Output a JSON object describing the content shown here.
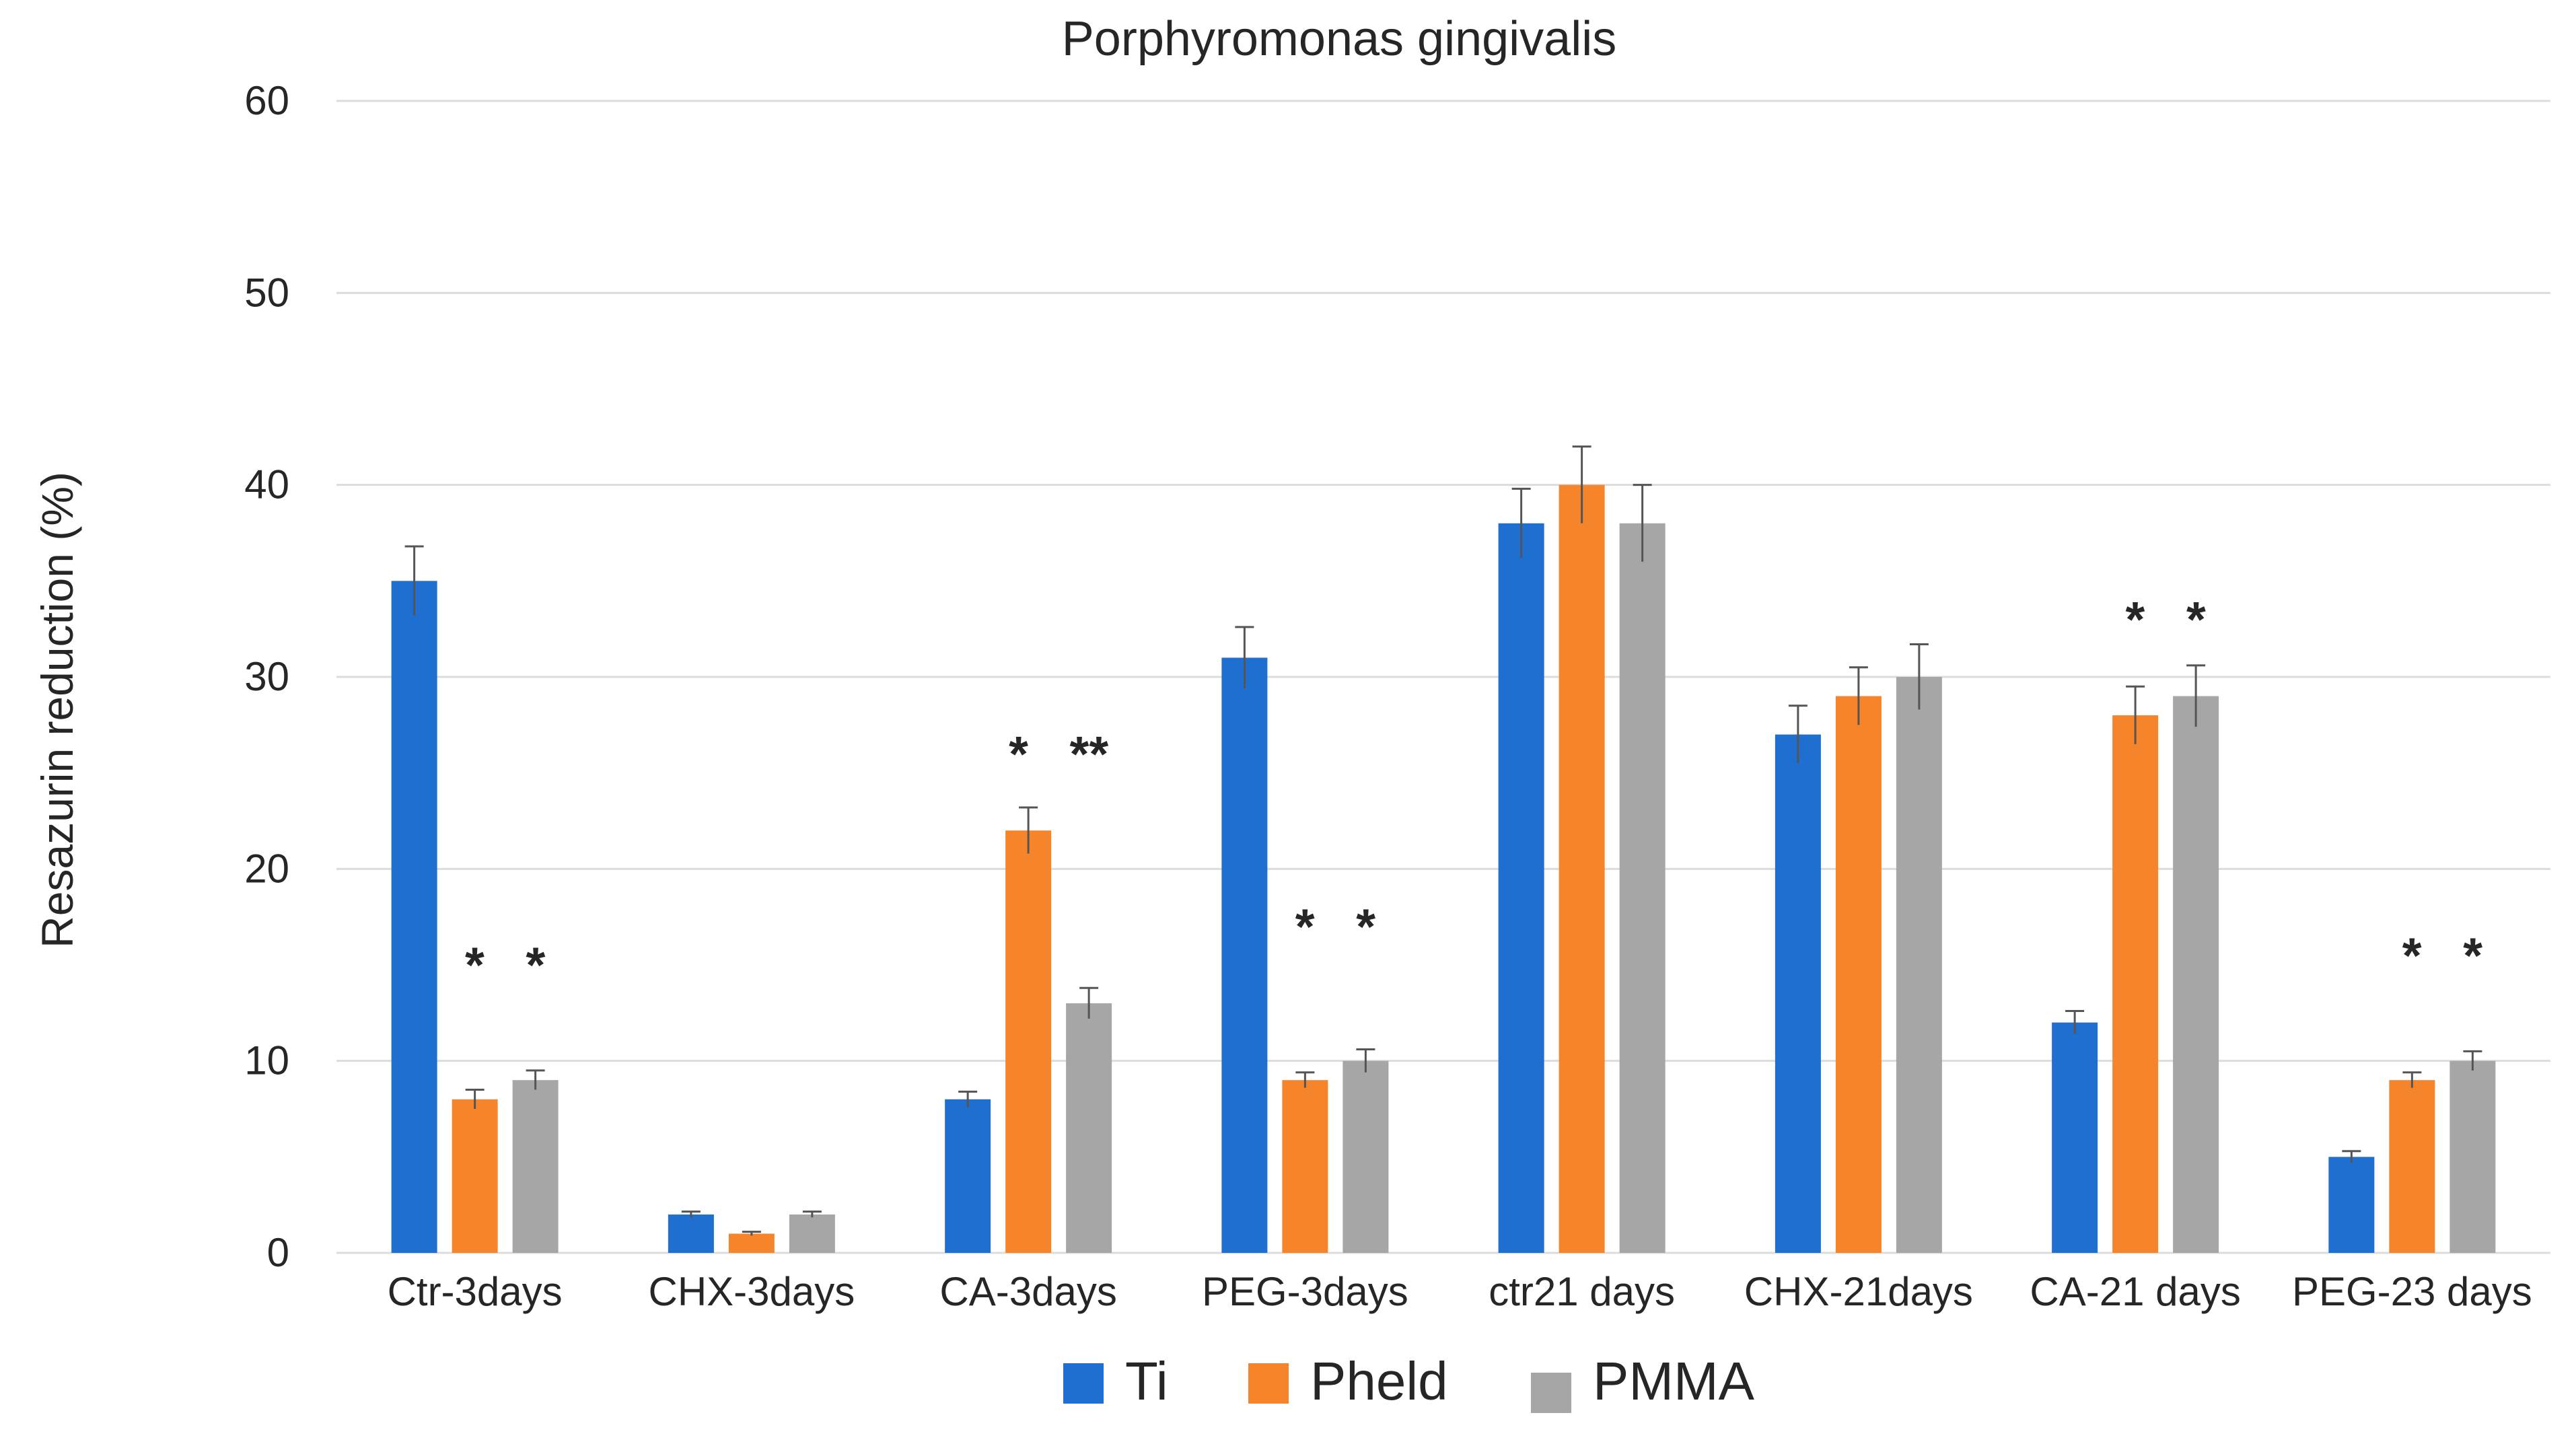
{
  "chart_data": {
    "type": "bar",
    "title": "Porphyromonas gingivalis",
    "xlabel": "",
    "ylabel": "Resazurin reduction (%)",
    "ylim": [
      0,
      60
    ],
    "y_ticks": [
      "0",
      "10",
      "20",
      "30",
      "40",
      "50",
      "60"
    ],
    "grid": true,
    "legend_position": "bottom",
    "categories": [
      "Ctr-3days",
      "CHX-3days",
      "CA-3days",
      "PEG-3days",
      "ctr21 days",
      "CHX-21days",
      "CA-21 days",
      "PEG-23 days"
    ],
    "series": [
      {
        "name": "Ti",
        "color": "#1f6fd0",
        "values": [
          35,
          2,
          8,
          31,
          38,
          27,
          12,
          5
        ],
        "errors": [
          1.8,
          0.15,
          0.4,
          1.6,
          1.8,
          1.5,
          0.6,
          0.3
        ]
      },
      {
        "name": "Pheld",
        "color": "#f5842a",
        "values": [
          8,
          1,
          22,
          9,
          40,
          29,
          28,
          9
        ],
        "errors": [
          0.5,
          0.1,
          1.2,
          0.4,
          2.0,
          1.5,
          1.5,
          0.4
        ]
      },
      {
        "name": "PMMA",
        "color": "#a6a6a6",
        "values": [
          9,
          2,
          13,
          10,
          38,
          30,
          29,
          10
        ],
        "errors": [
          0.5,
          0.15,
          0.8,
          0.6,
          2.0,
          1.7,
          1.6,
          0.5
        ]
      }
    ],
    "annotations": [
      {
        "category": "Ctr-3days",
        "text": "*   *",
        "y": 15.5
      },
      {
        "category": "CA-3days",
        "text": "*   **",
        "y": 26.5
      },
      {
        "category": "PEG-3days",
        "text": "*   *",
        "y": 17.5
      },
      {
        "category": "CA-21 days",
        "text": "*   *",
        "y": 33.5
      },
      {
        "category": "PEG-23 days",
        "text": "*   *",
        "y": 16
      }
    ]
  }
}
